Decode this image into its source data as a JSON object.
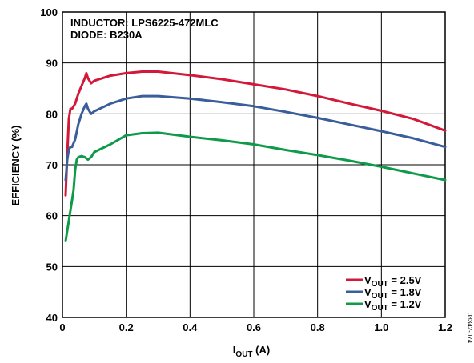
{
  "chart_data": {
    "type": "line",
    "xlabel": {
      "main": "I",
      "sub": "OUT",
      "rest": " (A)"
    },
    "ylabel": "EFFICIENCY (%)",
    "xlim": [
      0,
      1.2
    ],
    "ylim": [
      40,
      100
    ],
    "xticks": [
      0,
      0.2,
      0.4,
      0.6,
      0.8,
      1.0,
      1.2
    ],
    "xtick_labels": [
      "0",
      "0.2",
      "0.4",
      "0.6",
      "0.8",
      "1.0",
      "1.2"
    ],
    "yticks": [
      40,
      50,
      60,
      70,
      80,
      90,
      100
    ],
    "ytick_labels": [
      "40",
      "50",
      "60",
      "70",
      "80",
      "90",
      "100"
    ],
    "grid": true,
    "annotations": [
      "INDUCTOR: LPS6225-472MLC",
      "DIODE: B230A"
    ],
    "legend_position": "bottom-right",
    "series": [
      {
        "name": "VOUT = 2.5V",
        "label_main": "V",
        "label_sub": "OUT",
        "label_rest": " = 2.5V",
        "color": "#d2193a",
        "x": [
          0.01,
          0.015,
          0.02,
          0.025,
          0.03,
          0.04,
          0.05,
          0.06,
          0.07,
          0.075,
          0.08,
          0.09,
          0.1,
          0.15,
          0.2,
          0.25,
          0.3,
          0.4,
          0.5,
          0.6,
          0.7,
          0.8,
          0.9,
          1.0,
          1.1,
          1.2
        ],
        "y": [
          64,
          72,
          79,
          81,
          81,
          82,
          84,
          85.5,
          87,
          88,
          87,
          86,
          86.5,
          87.5,
          88,
          88.3,
          88.3,
          87.6,
          86.8,
          85.8,
          84.8,
          83.5,
          82,
          80.6,
          79,
          76.7
        ]
      },
      {
        "name": "VOUT = 1.8V",
        "label_main": "V",
        "label_sub": "OUT",
        "label_rest": " = 1.8V",
        "color": "#3a5e9a",
        "x": [
          0.01,
          0.015,
          0.02,
          0.025,
          0.03,
          0.04,
          0.05,
          0.06,
          0.07,
          0.075,
          0.08,
          0.09,
          0.1,
          0.15,
          0.2,
          0.25,
          0.3,
          0.4,
          0.5,
          0.6,
          0.7,
          0.8,
          0.9,
          1.0,
          1.1,
          1.2
        ],
        "y": [
          67,
          71,
          73,
          73.5,
          73.5,
          75,
          78,
          80,
          81.5,
          82,
          81,
          80,
          80.5,
          82,
          83,
          83.5,
          83.5,
          83,
          82.3,
          81.5,
          80.4,
          79.2,
          77.9,
          76.6,
          75.2,
          73.5
        ]
      },
      {
        "name": "VOUT = 1.2V",
        "label_main": "V",
        "label_sub": "OUT",
        "label_rest": " = 1.2V",
        "color": "#0f9a4a",
        "x": [
          0.01,
          0.015,
          0.02,
          0.025,
          0.03,
          0.035,
          0.04,
          0.045,
          0.05,
          0.06,
          0.07,
          0.08,
          0.09,
          0.1,
          0.15,
          0.2,
          0.25,
          0.3,
          0.4,
          0.5,
          0.6,
          0.7,
          0.8,
          0.9,
          1.0,
          1.1,
          1.2
        ],
        "y": [
          55,
          57,
          59,
          61,
          63,
          65,
          69,
          71,
          71.5,
          71.7,
          71.5,
          71,
          71.5,
          72.5,
          74,
          75.8,
          76.2,
          76.3,
          75.5,
          74.8,
          74,
          72.9,
          71.9,
          70.8,
          69.6,
          68.3,
          67
        ]
      }
    ],
    "figure_id": "08342-074"
  }
}
